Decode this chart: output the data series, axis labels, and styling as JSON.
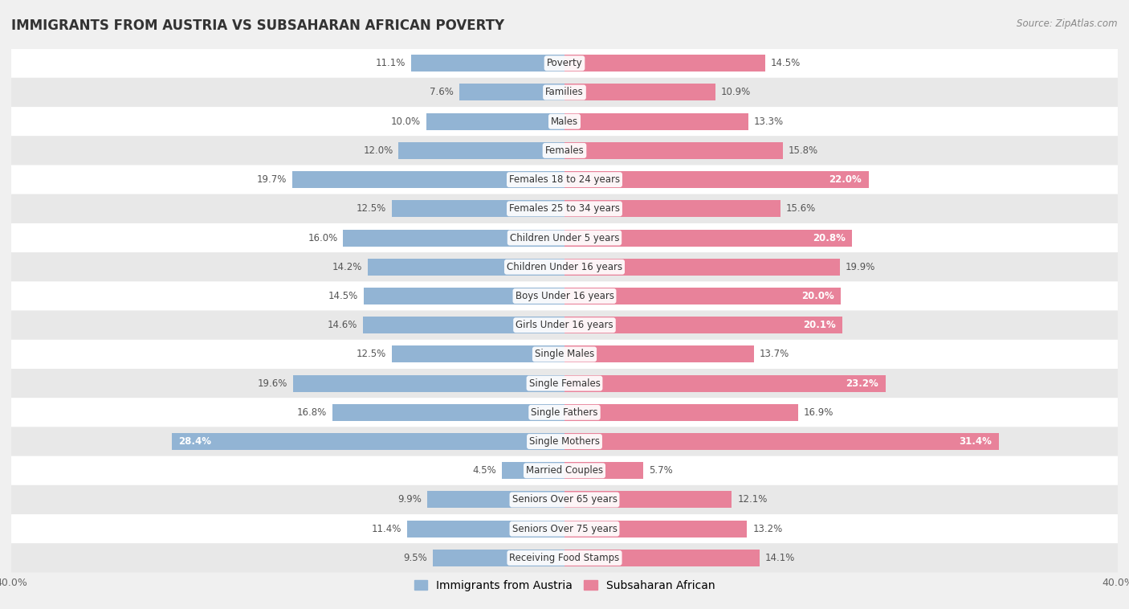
{
  "title": "IMMIGRANTS FROM AUSTRIA VS SUBSAHARAN AFRICAN POVERTY",
  "source": "Source: ZipAtlas.com",
  "categories": [
    "Poverty",
    "Families",
    "Males",
    "Females",
    "Females 18 to 24 years",
    "Females 25 to 34 years",
    "Children Under 5 years",
    "Children Under 16 years",
    "Boys Under 16 years",
    "Girls Under 16 years",
    "Single Males",
    "Single Females",
    "Single Fathers",
    "Single Mothers",
    "Married Couples",
    "Seniors Over 65 years",
    "Seniors Over 75 years",
    "Receiving Food Stamps"
  ],
  "austria_values": [
    11.1,
    7.6,
    10.0,
    12.0,
    19.7,
    12.5,
    16.0,
    14.2,
    14.5,
    14.6,
    12.5,
    19.6,
    16.8,
    28.4,
    4.5,
    9.9,
    11.4,
    9.5
  ],
  "subsaharan_values": [
    14.5,
    10.9,
    13.3,
    15.8,
    22.0,
    15.6,
    20.8,
    19.9,
    20.0,
    20.1,
    13.7,
    23.2,
    16.9,
    31.4,
    5.7,
    12.1,
    13.2,
    14.1
  ],
  "austria_color": "#92b4d4",
  "subsaharan_color": "#e8829a",
  "xlim": 40.0,
  "bar_height": 0.58,
  "background_color": "#f0f0f0",
  "row_color_light": "#ffffff",
  "row_color_dark": "#e8e8e8",
  "label_fontsize": 8.5,
  "title_fontsize": 12,
  "legend_fontsize": 10,
  "white_label_threshold": 20.0
}
